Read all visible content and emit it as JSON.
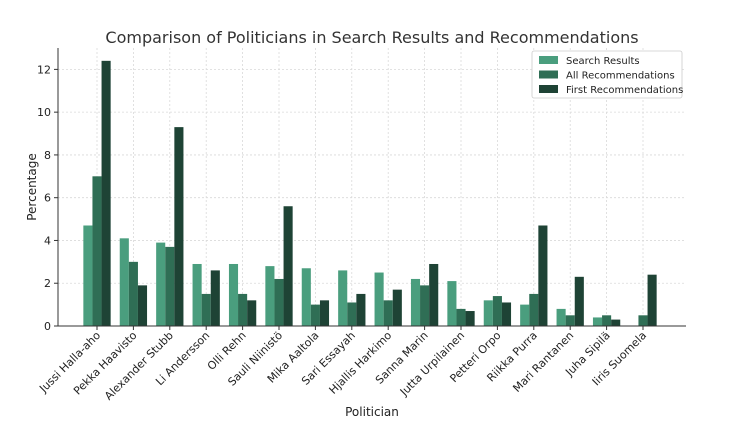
{
  "chart_data": {
    "type": "bar",
    "title": "Comparison of Politicians in Search Results and Recommendations",
    "xlabel": "Politician",
    "ylabel": "Percentage",
    "ylim": [
      0,
      13
    ],
    "yticks": [
      0,
      2,
      4,
      6,
      8,
      10,
      12
    ],
    "grid": true,
    "legend_position": "top-right",
    "categories": [
      "Jussi Halla-aho",
      "Pekka Haavisto",
      "Alexander Stubb",
      "Li Andersson",
      "Olli Rehn",
      "Sauli Niinistö",
      "Mika Aaltola",
      "Sari Essayah",
      "Hjallis Harkimo",
      "Sanna Marin",
      "Jutta Urpilainen",
      "Petteri Orpo",
      "Riikka Purra",
      "Mari Rantanen",
      "Juha Sipilä",
      "Iiris Suomela"
    ],
    "series": [
      {
        "name": "Search Results",
        "color": "#4a9e7e",
        "values": [
          4.7,
          4.1,
          3.9,
          2.9,
          2.9,
          2.8,
          2.7,
          2.6,
          2.5,
          2.2,
          2.1,
          1.2,
          1.0,
          0.8,
          0.4,
          0.0
        ]
      },
      {
        "name": "All Recommendations",
        "color": "#2f6e55",
        "values": [
          7.0,
          3.0,
          3.7,
          1.5,
          1.5,
          2.2,
          1.0,
          1.1,
          1.2,
          1.9,
          0.8,
          1.4,
          1.5,
          0.5,
          0.5,
          0.5
        ]
      },
      {
        "name": "First Recommendations",
        "color": "#1e4335",
        "values": [
          12.4,
          1.9,
          9.3,
          2.6,
          1.2,
          5.6,
          1.2,
          1.5,
          1.7,
          2.9,
          0.7,
          1.1,
          4.7,
          2.3,
          0.3,
          2.4
        ]
      }
    ]
  }
}
